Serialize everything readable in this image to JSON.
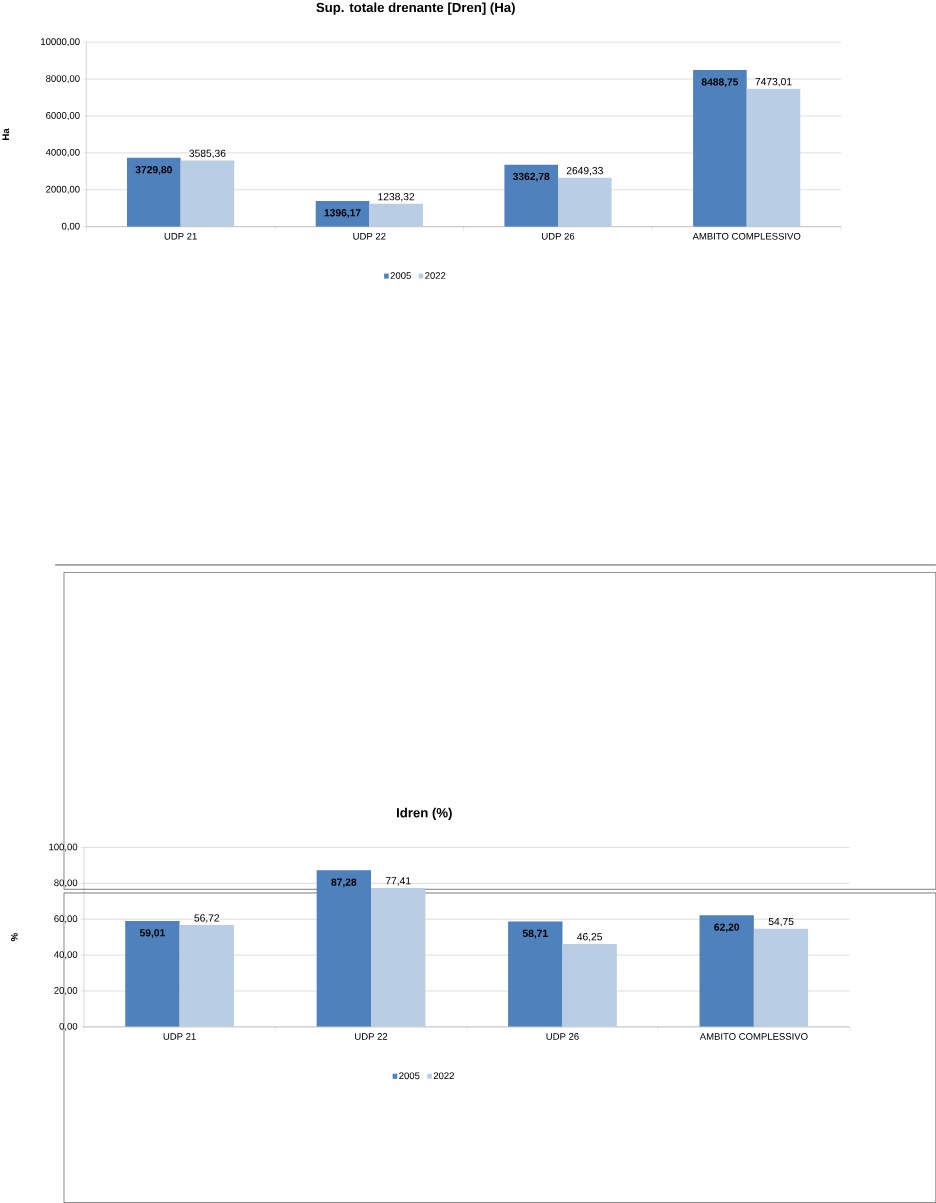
{
  "chart_data": [
    {
      "type": "bar",
      "title": "Sup. totale drenante [Dren] (Ha)",
      "ylabel": "Ha",
      "categories": [
        "UDP 21",
        "UDP 22",
        "UDP 26",
        "AMBITO COMPLESSIVO"
      ],
      "series": [
        {
          "name": "2005",
          "color": "#4f81bd",
          "values": [
            3729.8,
            1396.17,
            3362.78,
            8488.75
          ],
          "value_labels": [
            "3729,80",
            "1396,17",
            "3362,78",
            "8488,75"
          ]
        },
        {
          "name": "2022",
          "color": "#b9cde5",
          "values": [
            3585.36,
            1238.32,
            2649.33,
            7473.01
          ],
          "value_labels": [
            "3585,36",
            "1238,32",
            "2649,33",
            "7473,01"
          ]
        }
      ],
      "ylim": [
        0,
        10000
      ],
      "yticks": [
        {
          "value": 0,
          "label": "0,00"
        },
        {
          "value": 2000,
          "label": "2000,00"
        },
        {
          "value": 4000,
          "label": "4000,00"
        },
        {
          "value": 6000,
          "label": "6000,00"
        },
        {
          "value": 8000,
          "label": "8000,00"
        },
        {
          "value": 10000,
          "label": "10000,00"
        }
      ],
      "grid": "y",
      "legend": "bottom"
    },
    {
      "type": "bar",
      "title": "Idren (%)",
      "ylabel": "%",
      "categories": [
        "UDP 21",
        "UDP 22",
        "UDP 26",
        "AMBITO COMPLESSIVO"
      ],
      "series": [
        {
          "name": "2005",
          "color": "#4f81bd",
          "values": [
            59.01,
            87.28,
            58.71,
            62.2
          ],
          "value_labels": [
            "59,01",
            "87,28",
            "58,71",
            "62,20"
          ]
        },
        {
          "name": "2022",
          "color": "#b9cde5",
          "values": [
            56.72,
            77.41,
            46.25,
            54.75
          ],
          "value_labels": [
            "56,72",
            "77,41",
            "46,25",
            "54,75"
          ]
        }
      ],
      "ylim": [
        0,
        100
      ],
      "yticks": [
        {
          "value": 0,
          "label": "0,00"
        },
        {
          "value": 20,
          "label": "20,00"
        },
        {
          "value": 40,
          "label": "40,00"
        },
        {
          "value": 60,
          "label": "60,00"
        },
        {
          "value": 80,
          "label": "80,00"
        },
        {
          "value": 100,
          "label": "100,00"
        }
      ],
      "grid": "y",
      "legend": "bottom"
    }
  ]
}
